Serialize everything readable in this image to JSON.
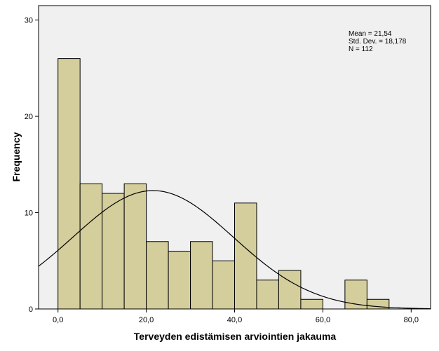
{
  "chart_data": {
    "type": "bar",
    "subtype": "histogram",
    "xlabel": "Terveyden edistämisen arviointien jakauma",
    "ylabel": "Frequency",
    "x_tick_labels": [
      "0,0",
      "20,0",
      "40,0",
      "60,0",
      "80,0"
    ],
    "x_ticks": [
      0,
      20,
      40,
      60,
      80
    ],
    "y_tick_labels": [
      "0",
      "10",
      "20",
      "30"
    ],
    "y_ticks": [
      0,
      10,
      20,
      30
    ],
    "xlim": [
      -4.4,
      84.4
    ],
    "ylim": [
      0,
      31.5
    ],
    "bin_width": 5,
    "bins": [
      {
        "start": 0,
        "end": 5,
        "count": 26
      },
      {
        "start": 5,
        "end": 10,
        "count": 13
      },
      {
        "start": 10,
        "end": 15,
        "count": 12
      },
      {
        "start": 15,
        "end": 20,
        "count": 13
      },
      {
        "start": 20,
        "end": 25,
        "count": 7
      },
      {
        "start": 25,
        "end": 30,
        "count": 6
      },
      {
        "start": 30,
        "end": 35,
        "count": 7
      },
      {
        "start": 35,
        "end": 40,
        "count": 5
      },
      {
        "start": 40,
        "end": 45,
        "count": 11
      },
      {
        "start": 45,
        "end": 50,
        "count": 3
      },
      {
        "start": 50,
        "end": 55,
        "count": 4
      },
      {
        "start": 55,
        "end": 60,
        "count": 1
      },
      {
        "start": 60,
        "end": 65,
        "count": 0
      },
      {
        "start": 65,
        "end": 70,
        "count": 3
      },
      {
        "start": 70,
        "end": 75,
        "count": 1
      }
    ],
    "normal_curve": {
      "mean": 21.54,
      "std_dev": 18.178,
      "n": 112
    },
    "stats_labels": [
      "Mean = 21,54",
      "Std. Dev. = 18,178",
      "N = 112"
    ],
    "grid": false,
    "colors": {
      "bar_fill": "#d3ce9c",
      "bar_stroke": "#000000",
      "plot_background": "#f0f0f0",
      "curve": "#000000"
    }
  }
}
